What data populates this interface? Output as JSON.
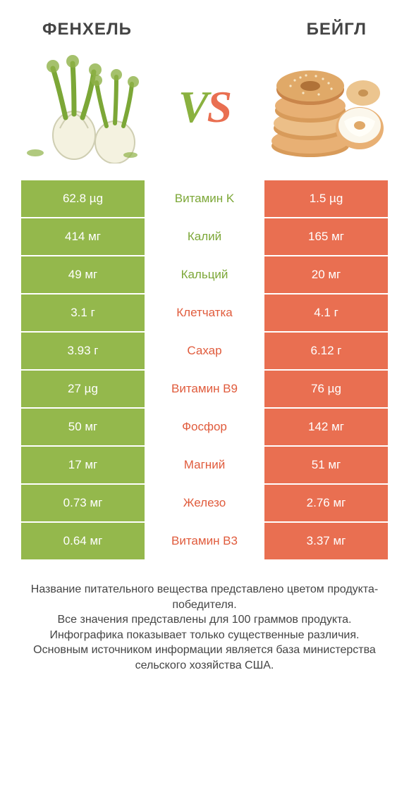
{
  "colors": {
    "left": "#94b84c",
    "right": "#e96f51",
    "left_label": "#7ca737",
    "right_label": "#e05b3c",
    "title": "#444444",
    "footer": "#444444",
    "bg": "#ffffff"
  },
  "titles": {
    "left": "ФЕНХЕЛЬ",
    "right": "БЕЙГЛ"
  },
  "vs": {
    "v": "V",
    "s": "S"
  },
  "rows": [
    {
      "label": "Витамин K",
      "left": "62.8 µg",
      "right": "1.5 µg",
      "winner": "left"
    },
    {
      "label": "Калий",
      "left": "414 мг",
      "right": "165 мг",
      "winner": "left"
    },
    {
      "label": "Кальций",
      "left": "49 мг",
      "right": "20 мг",
      "winner": "left"
    },
    {
      "label": "Клетчатка",
      "left": "3.1 г",
      "right": "4.1 г",
      "winner": "right"
    },
    {
      "label": "Сахар",
      "left": "3.93 г",
      "right": "6.12 г",
      "winner": "right"
    },
    {
      "label": "Витамин B9",
      "left": "27 µg",
      "right": "76 µg",
      "winner": "right"
    },
    {
      "label": "Фосфор",
      "left": "50 мг",
      "right": "142 мг",
      "winner": "right"
    },
    {
      "label": "Магний",
      "left": "17 мг",
      "right": "51 мг",
      "winner": "right"
    },
    {
      "label": "Железо",
      "left": "0.73 мг",
      "right": "2.76 мг",
      "winner": "right"
    },
    {
      "label": "Витамин B3",
      "left": "0.64 мг",
      "right": "3.37 мг",
      "winner": "right"
    }
  ],
  "footer_lines": [
    "Название питательного вещества представлено цветом продукта-победителя.",
    "Все значения представлены для 100 граммов продукта.",
    "Инфографика показывает только существенные различия.",
    "Основным источником информации является база министерства сельского хозяйства США."
  ],
  "typography": {
    "title_fontsize": 24,
    "cell_fontsize": 17,
    "vs_fontsize": 64,
    "footer_fontsize": 16
  }
}
